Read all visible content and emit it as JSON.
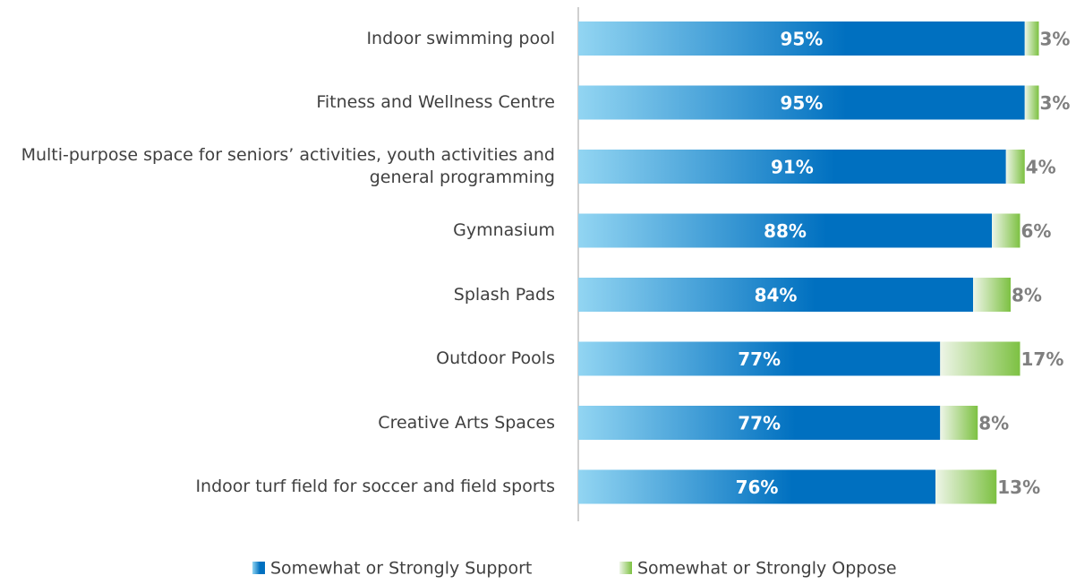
{
  "chart_data": {
    "type": "stacked-bar-horizontal",
    "categories": [
      "Indoor swimming pool",
      "Fitness and Wellness Centre",
      "Multi-purpose space for seniors’ activities, youth activities and general programming",
      "Gymnasium",
      "Splash Pads",
      "Outdoor Pools",
      "Creative Arts Spaces",
      "Indoor turf field for soccer and field sports"
    ],
    "series": [
      {
        "name": "Somewhat or Strongly Support",
        "color": "#0070c0",
        "values": [
          95,
          95,
          91,
          88,
          84,
          77,
          77,
          76
        ],
        "value_labels": [
          "95%",
          "95%",
          "91%",
          "88%",
          "84%",
          "77%",
          "77%",
          "76%"
        ]
      },
      {
        "name": "Somewhat or Strongly Oppose",
        "color": "#7dc142",
        "values": [
          3,
          3,
          4,
          6,
          8,
          17,
          8,
          13
        ],
        "value_labels": [
          "3%",
          "3%",
          "4%",
          "6%",
          "8%",
          "17%",
          "8%",
          "13%"
        ]
      }
    ],
    "xlim": [
      0,
      100
    ],
    "legend": "bottom"
  }
}
